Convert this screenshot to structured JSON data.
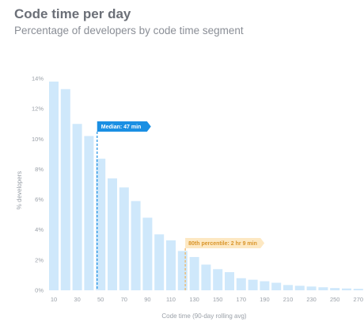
{
  "title": "Code time per day",
  "subtitle": "Percentage of developers by code time segment",
  "colors": {
    "bar": "#cfe8fb",
    "median": "#1a8fe3",
    "percentile_fill": "#fde8c2",
    "percentile_text": "#d9952a",
    "percentile_line": "#f0b45e"
  },
  "chart_data": {
    "type": "bar",
    "x": [
      10,
      20,
      30,
      40,
      50,
      60,
      70,
      80,
      90,
      100,
      110,
      120,
      130,
      140,
      150,
      160,
      170,
      180,
      190,
      200,
      210,
      220,
      230,
      240,
      250,
      260,
      270,
      280
    ],
    "values": [
      13.8,
      13.3,
      11.0,
      10.2,
      8.7,
      7.4,
      6.8,
      5.9,
      4.8,
      3.7,
      3.3,
      2.6,
      2.2,
      1.7,
      1.4,
      1.2,
      0.8,
      0.7,
      0.6,
      0.5,
      0.35,
      0.3,
      0.25,
      0.2,
      0.15,
      0.12,
      0.1,
      0.08
    ],
    "xticks": [
      "10",
      "30",
      "50",
      "70",
      "90",
      "110",
      "130",
      "150",
      "170",
      "190",
      "210",
      "230",
      "250",
      "270"
    ],
    "yticks": [
      "0%",
      "2%",
      "4%",
      "6%",
      "8%",
      "10%",
      "12%",
      "14%"
    ],
    "ylim": [
      0,
      14
    ],
    "xlabel": "Code time (90-day rolling avg)",
    "ylabel": "% developers",
    "annotations": [
      {
        "label": "Median: 47 min",
        "x": 47
      },
      {
        "label": "80th percentile: 2 hr 9 min",
        "x": 129
      }
    ]
  }
}
